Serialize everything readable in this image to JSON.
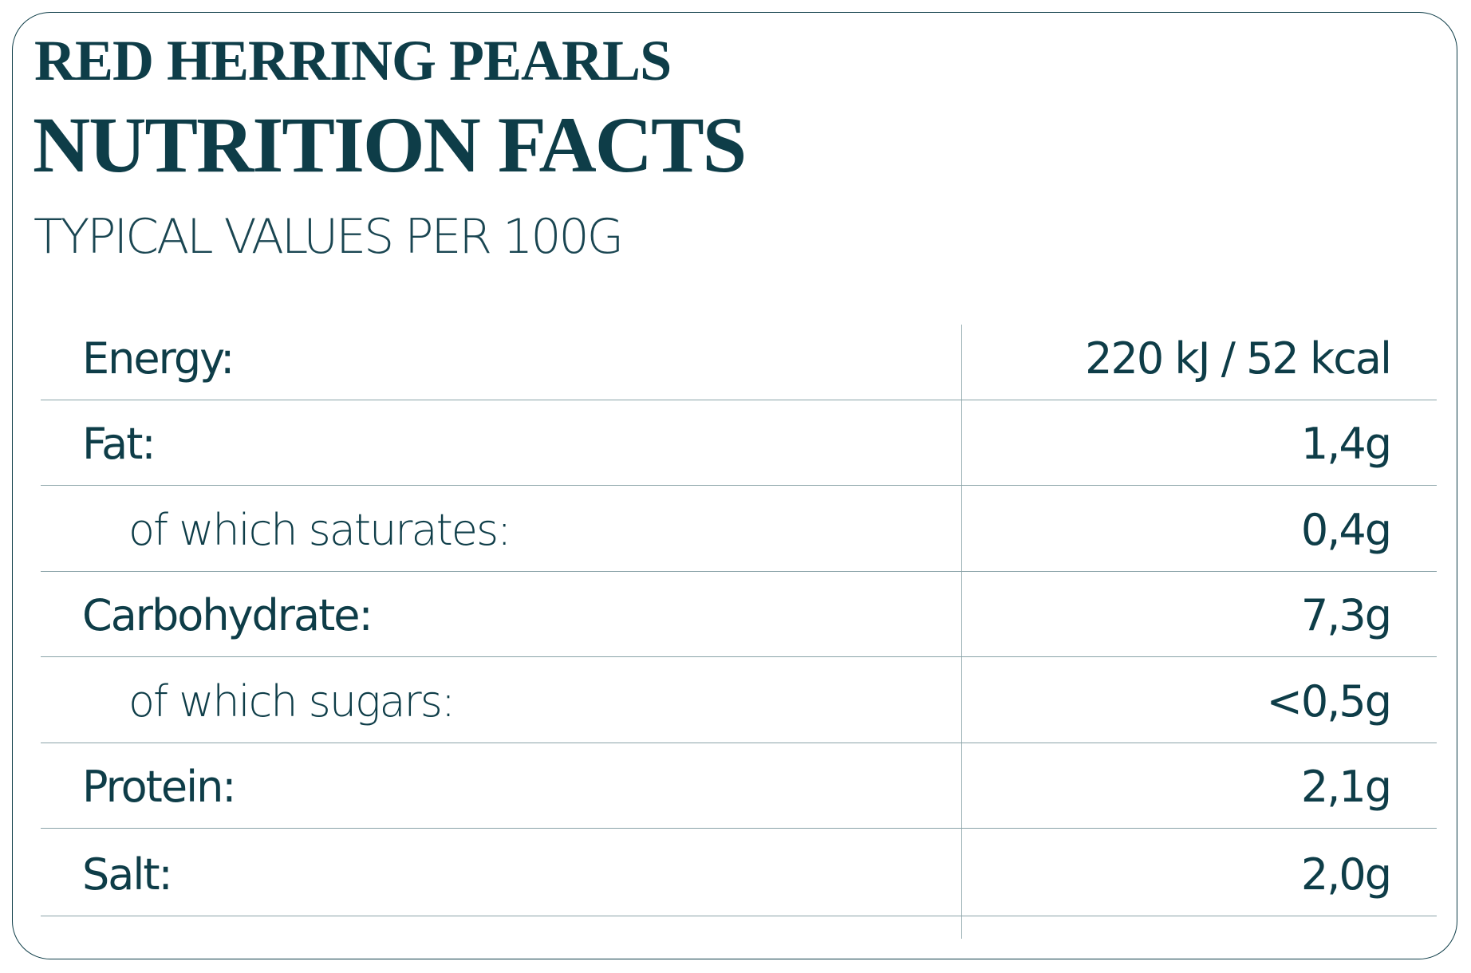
{
  "header": {
    "product": "RED HERRING PEARLS",
    "title": "NUTRITION FACTS",
    "subtitle": "TYPICAL VALUES PER 100G"
  },
  "colors": {
    "text": "#0e3d48",
    "lines": "#8aa3a8"
  },
  "rows": [
    {
      "label": "Energy:",
      "value": "220 kJ / 52 kcal",
      "indent": false
    },
    {
      "label": "Fat:",
      "value": "1,4g",
      "indent": false
    },
    {
      "label": "of which saturates:",
      "value": "0,4g",
      "indent": true
    },
    {
      "label": "Carbohydrate:",
      "value": "7,3g",
      "indent": false
    },
    {
      "label": "of which sugars:",
      "value": "<0,5g",
      "indent": true
    },
    {
      "label": "Protein:",
      "value": "2,1g",
      "indent": false
    },
    {
      "label": "Salt:",
      "value": "2,0g",
      "indent": false
    }
  ]
}
